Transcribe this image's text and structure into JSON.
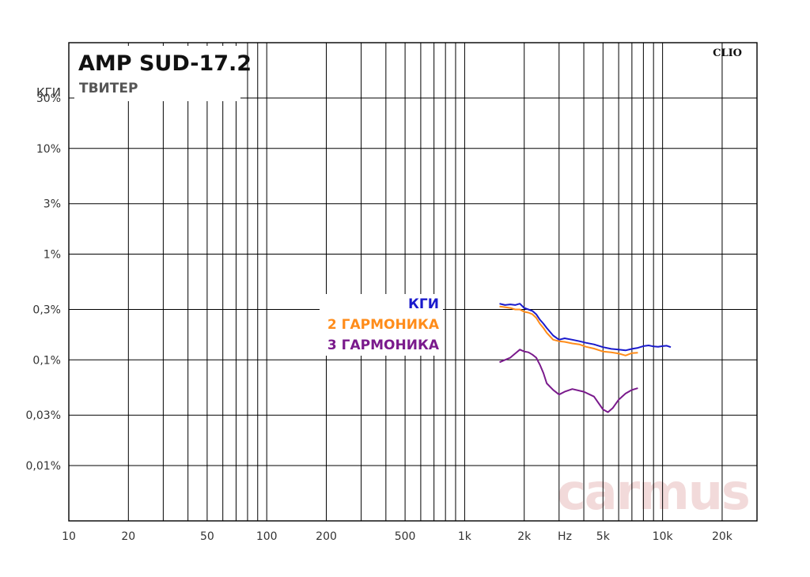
{
  "chart_data": {
    "type": "line",
    "title": "AMP SUD-17.2",
    "subtitle": "ТВИТЕР",
    "ylabel": "КГИ",
    "xunit": "Hz",
    "brand": "CLIO",
    "watermark": "carmus",
    "xscale": "log",
    "yscale": "log",
    "xlim": [
      10,
      30000
    ],
    "ylim": [
      0.003,
      100
    ],
    "grid": true,
    "x_ticks": [
      {
        "value": 10,
        "label": "10"
      },
      {
        "value": 20,
        "label": "20"
      },
      {
        "value": 50,
        "label": "50"
      },
      {
        "value": 100,
        "label": "100"
      },
      {
        "value": 200,
        "label": "200"
      },
      {
        "value": 500,
        "label": "500"
      },
      {
        "value": 1000,
        "label": "1k"
      },
      {
        "value": 2000,
        "label": "2k"
      },
      {
        "value": 5000,
        "label": "5k"
      },
      {
        "value": 10000,
        "label": "10k"
      },
      {
        "value": 20000,
        "label": "20k"
      }
    ],
    "y_ticks": [
      {
        "value": 30,
        "label": "30%"
      },
      {
        "value": 10,
        "label": "10%"
      },
      {
        "value": 3,
        "label": "3%"
      },
      {
        "value": 1,
        "label": "1%"
      },
      {
        "value": 0.3,
        "label": "0,3%"
      },
      {
        "value": 0.1,
        "label": "0,1%"
      },
      {
        "value": 0.03,
        "label": "0,03%"
      },
      {
        "value": 0.01,
        "label": "0,01%"
      }
    ],
    "legend_position": "center",
    "series": [
      {
        "name": "КГИ",
        "color": "#1a1acc",
        "x": [
          1500,
          1600,
          1700,
          1800,
          1900,
          2000,
          2100,
          2200,
          2300,
          2400,
          2500,
          2600,
          2800,
          3000,
          3200,
          3500,
          3800,
          4100,
          4500,
          5000,
          5500,
          6000,
          6500,
          7000,
          7500,
          8000,
          8500,
          9000,
          9500,
          10000,
          10500,
          11000
        ],
        "y": [
          0.34,
          0.33,
          0.335,
          0.33,
          0.34,
          0.31,
          0.3,
          0.29,
          0.27,
          0.24,
          0.22,
          0.2,
          0.17,
          0.155,
          0.16,
          0.155,
          0.15,
          0.145,
          0.14,
          0.132,
          0.127,
          0.125,
          0.123,
          0.127,
          0.13,
          0.135,
          0.137,
          0.134,
          0.133,
          0.135,
          0.136,
          0.132
        ]
      },
      {
        "name": "2 ГАРМОНИКА",
        "color": "#ff8c1a",
        "x": [
          1500,
          1600,
          1700,
          1800,
          1900,
          2000,
          2100,
          2200,
          2300,
          2400,
          2500,
          2600,
          2800,
          3000,
          3200,
          3500,
          3800,
          4100,
          4500,
          5000,
          5500,
          6000,
          6500,
          7000,
          7500
        ],
        "y": [
          0.32,
          0.315,
          0.31,
          0.3,
          0.3,
          0.285,
          0.28,
          0.27,
          0.25,
          0.22,
          0.2,
          0.18,
          0.155,
          0.15,
          0.148,
          0.143,
          0.14,
          0.133,
          0.128,
          0.12,
          0.118,
          0.115,
          0.11,
          0.116,
          0.117
        ]
      },
      {
        "name": "3 ГАРМОНИКА",
        "color": "#7a1a8c",
        "x": [
          1500,
          1600,
          1700,
          1800,
          1900,
          2000,
          2100,
          2200,
          2300,
          2400,
          2500,
          2600,
          2800,
          3000,
          3200,
          3500,
          4000,
          4500,
          5000,
          5300,
          5600,
          6000,
          6500,
          7000,
          7500
        ],
        "y": [
          0.095,
          0.1,
          0.105,
          0.115,
          0.125,
          0.12,
          0.118,
          0.112,
          0.105,
          0.09,
          0.075,
          0.06,
          0.052,
          0.047,
          0.05,
          0.053,
          0.05,
          0.045,
          0.034,
          0.032,
          0.035,
          0.042,
          0.048,
          0.052,
          0.054
        ]
      }
    ]
  }
}
